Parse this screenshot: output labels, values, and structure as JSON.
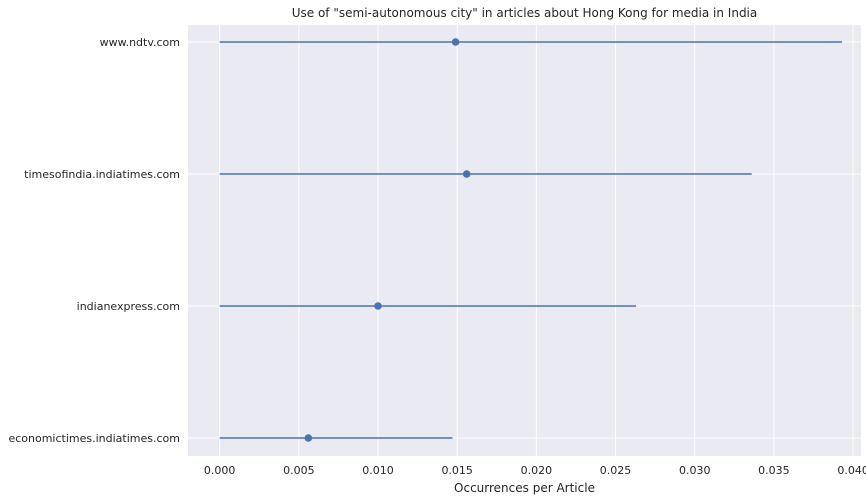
{
  "chart_data": {
    "type": "errorbar",
    "title": "Use of \"semi-autonomous city\" in articles about Hong Kong for media in India",
    "xlabel": "Occurrences per Article",
    "ylabel": "",
    "xlim": [
      -0.002,
      0.0405
    ],
    "x_ticks": [
      0.0,
      0.005,
      0.01,
      0.015,
      0.02,
      0.025,
      0.03,
      0.035,
      0.04
    ],
    "x_tick_labels": [
      "0.000",
      "0.005",
      "0.010",
      "0.015",
      "0.020",
      "0.025",
      "0.030",
      "0.035",
      "0.040"
    ],
    "grid": true,
    "categories": [
      "www.ndtv.com",
      "timesofindia.indiatimes.com",
      "indianexpress.com",
      "economictimes.indiatimes.com"
    ],
    "series": [
      {
        "values": [
          0.0149,
          0.0156,
          0.01,
          0.0056
        ],
        "lower": [
          0.0,
          0.0,
          0.0,
          0.0
        ],
        "upper": [
          0.0393,
          0.0336,
          0.0263,
          0.0147
        ]
      }
    ],
    "colors": {
      "background": "#EAEAF2",
      "grid": "#FFFFFF",
      "marker": "#4C72B0",
      "text": "#262626"
    }
  }
}
